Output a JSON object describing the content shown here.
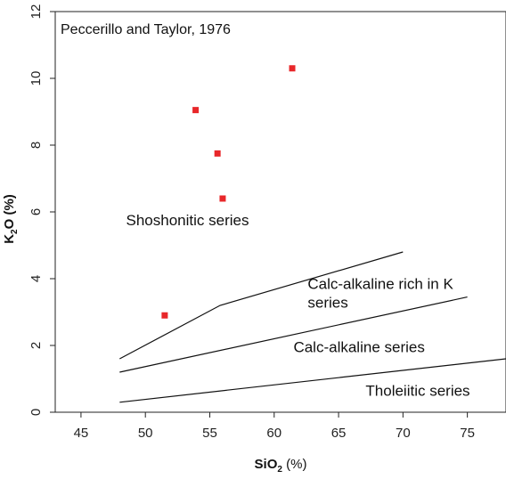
{
  "chart_data": {
    "type": "scatter",
    "title": "Peccerillo and Taylor, 1976",
    "xlabel": {
      "main": "SiO",
      "sub": "2",
      "unit": " (%)"
    },
    "ylabel": {
      "main": "K",
      "sub": "2",
      "rest": "O (%)"
    },
    "xlim": [
      43,
      78
    ],
    "ylim": [
      0,
      12
    ],
    "xticks": [
      45,
      50,
      55,
      60,
      65,
      70,
      75
    ],
    "yticks": [
      0,
      2,
      4,
      6,
      8,
      10,
      12
    ],
    "points": [
      {
        "x": 51.5,
        "y": 2.9
      },
      {
        "x": 53.9,
        "y": 9.05
      },
      {
        "x": 55.6,
        "y": 7.75
      },
      {
        "x": 56.0,
        "y": 6.4
      },
      {
        "x": 61.4,
        "y": 10.3
      }
    ],
    "point_color": "#e8272a",
    "boundaries": [
      {
        "points": [
          [
            48,
            1.6
          ],
          [
            55.8,
            3.2
          ],
          [
            70,
            4.8
          ]
        ]
      },
      {
        "points": [
          [
            48,
            1.2
          ],
          [
            75,
            3.45
          ]
        ]
      },
      {
        "points": [
          [
            48,
            0.3
          ],
          [
            78,
            1.6
          ]
        ]
      }
    ],
    "fields": [
      {
        "lines": [
          "Shoshonitic series"
        ],
        "x": 48.5,
        "y": 5.6
      },
      {
        "lines": [
          "Calc-alkaline rich in K",
          "series"
        ],
        "x": 62.6,
        "y": 3.7
      },
      {
        "lines": [
          "Calc-alkaline series"
        ],
        "x": 61.5,
        "y": 1.8
      },
      {
        "lines": [
          "Tholeiitic series"
        ],
        "x": 67.1,
        "y": 0.5
      }
    ]
  }
}
